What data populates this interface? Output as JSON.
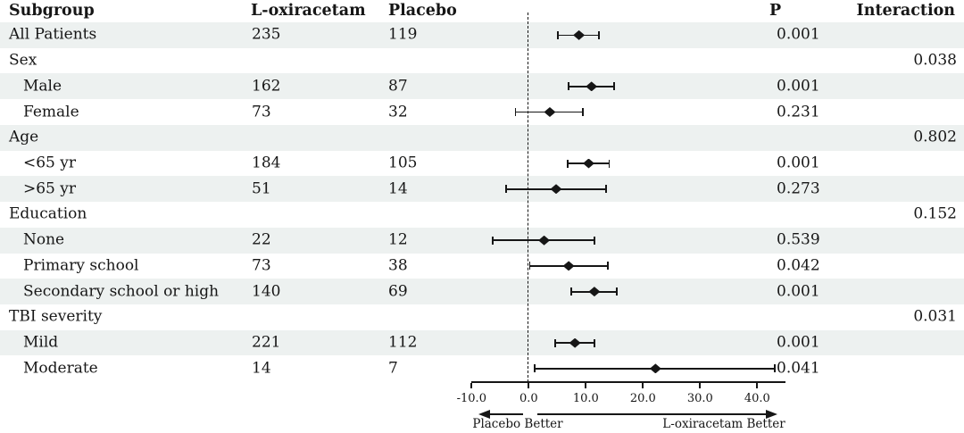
{
  "colors": {
    "row_shade": "#edf1f0",
    "ink": "#161616"
  },
  "figure": {
    "columns": {
      "subgroup": "Subgroup",
      "treatment": "L-oxiracetam",
      "placebo": "Placebo",
      "p": "P",
      "interaction": "Interaction"
    },
    "footer": {
      "left_label": "Placebo Better",
      "right_label": "L-oxiracetam Better"
    }
  },
  "chart_data": {
    "type": "forest",
    "title": "",
    "xlabel": "",
    "x_axis": {
      "tick_values": [
        -10,
        0,
        10,
        20,
        30,
        40
      ],
      "tick_labels": [
        "-10.0",
        "0.0",
        "10.0",
        "20.0",
        "30.0",
        "40.0"
      ],
      "range": [
        -10.1,
        44.9
      ],
      "zero_reference_line": 0,
      "zero_line_style": "dashed"
    },
    "rows": [
      {
        "label": "All Patients",
        "indent": false,
        "treatment_n": "235",
        "placebo_n": "119",
        "est": 8.8,
        "lo": 5.1,
        "hi": 12.3,
        "p": "0.001",
        "interaction": ""
      },
      {
        "label": "Sex",
        "indent": false,
        "treatment_n": "",
        "placebo_n": "",
        "est": null,
        "lo": null,
        "hi": null,
        "p": "",
        "interaction": "0.038"
      },
      {
        "label": "Male",
        "indent": true,
        "treatment_n": "162",
        "placebo_n": "87",
        "est": 11.0,
        "lo": 7.0,
        "hi": 15.0,
        "p": "0.001",
        "interaction": ""
      },
      {
        "label": "Female",
        "indent": true,
        "treatment_n": "73",
        "placebo_n": "32",
        "est": 3.7,
        "lo": -2.3,
        "hi": 9.5,
        "p": "0.231",
        "interaction": ""
      },
      {
        "label": "Age",
        "indent": false,
        "treatment_n": "",
        "placebo_n": "",
        "est": null,
        "lo": null,
        "hi": null,
        "p": "",
        "interaction": "0.802"
      },
      {
        "label": "<65 yr",
        "indent": true,
        "treatment_n": "184",
        "placebo_n": "105",
        "est": 10.5,
        "lo": 6.8,
        "hi": 14.1,
        "p": "0.001",
        "interaction": ""
      },
      {
        "label": ">65 yr",
        "indent": true,
        "treatment_n": "51",
        "placebo_n": "14",
        "est": 4.8,
        "lo": -3.9,
        "hi": 13.5,
        "p": "0.273",
        "interaction": ""
      },
      {
        "label": "Education",
        "indent": false,
        "treatment_n": "",
        "placebo_n": "",
        "est": null,
        "lo": null,
        "hi": null,
        "p": "",
        "interaction": "0.152"
      },
      {
        "label": "None",
        "indent": true,
        "treatment_n": "22",
        "placebo_n": "12",
        "est": 2.7,
        "lo": -6.3,
        "hi": 11.5,
        "p": "0.539",
        "interaction": ""
      },
      {
        "label": "Primary school",
        "indent": true,
        "treatment_n": "73",
        "placebo_n": "38",
        "est": 7.0,
        "lo": 0.2,
        "hi": 13.9,
        "p": "0.042",
        "interaction": ""
      },
      {
        "label": "Secondary school or high",
        "indent": true,
        "treatment_n": "140",
        "placebo_n": "69",
        "est": 11.5,
        "lo": 7.5,
        "hi": 15.4,
        "p": "0.001",
        "interaction": ""
      },
      {
        "label": "TBI severity",
        "indent": false,
        "treatment_n": "",
        "placebo_n": "",
        "est": null,
        "lo": null,
        "hi": null,
        "p": "",
        "interaction": "0.031"
      },
      {
        "label": "Mild",
        "indent": true,
        "treatment_n": "221",
        "placebo_n": "112",
        "est": 8.1,
        "lo": 4.7,
        "hi": 11.5,
        "p": "0.001",
        "interaction": ""
      },
      {
        "label": "Moderate",
        "indent": true,
        "treatment_n": "14",
        "placebo_n": "7",
        "est": 22.2,
        "lo": 1.0,
        "hi": 43.1,
        "p": "0.041",
        "interaction": ""
      }
    ],
    "legend": "off",
    "grid": "off"
  }
}
